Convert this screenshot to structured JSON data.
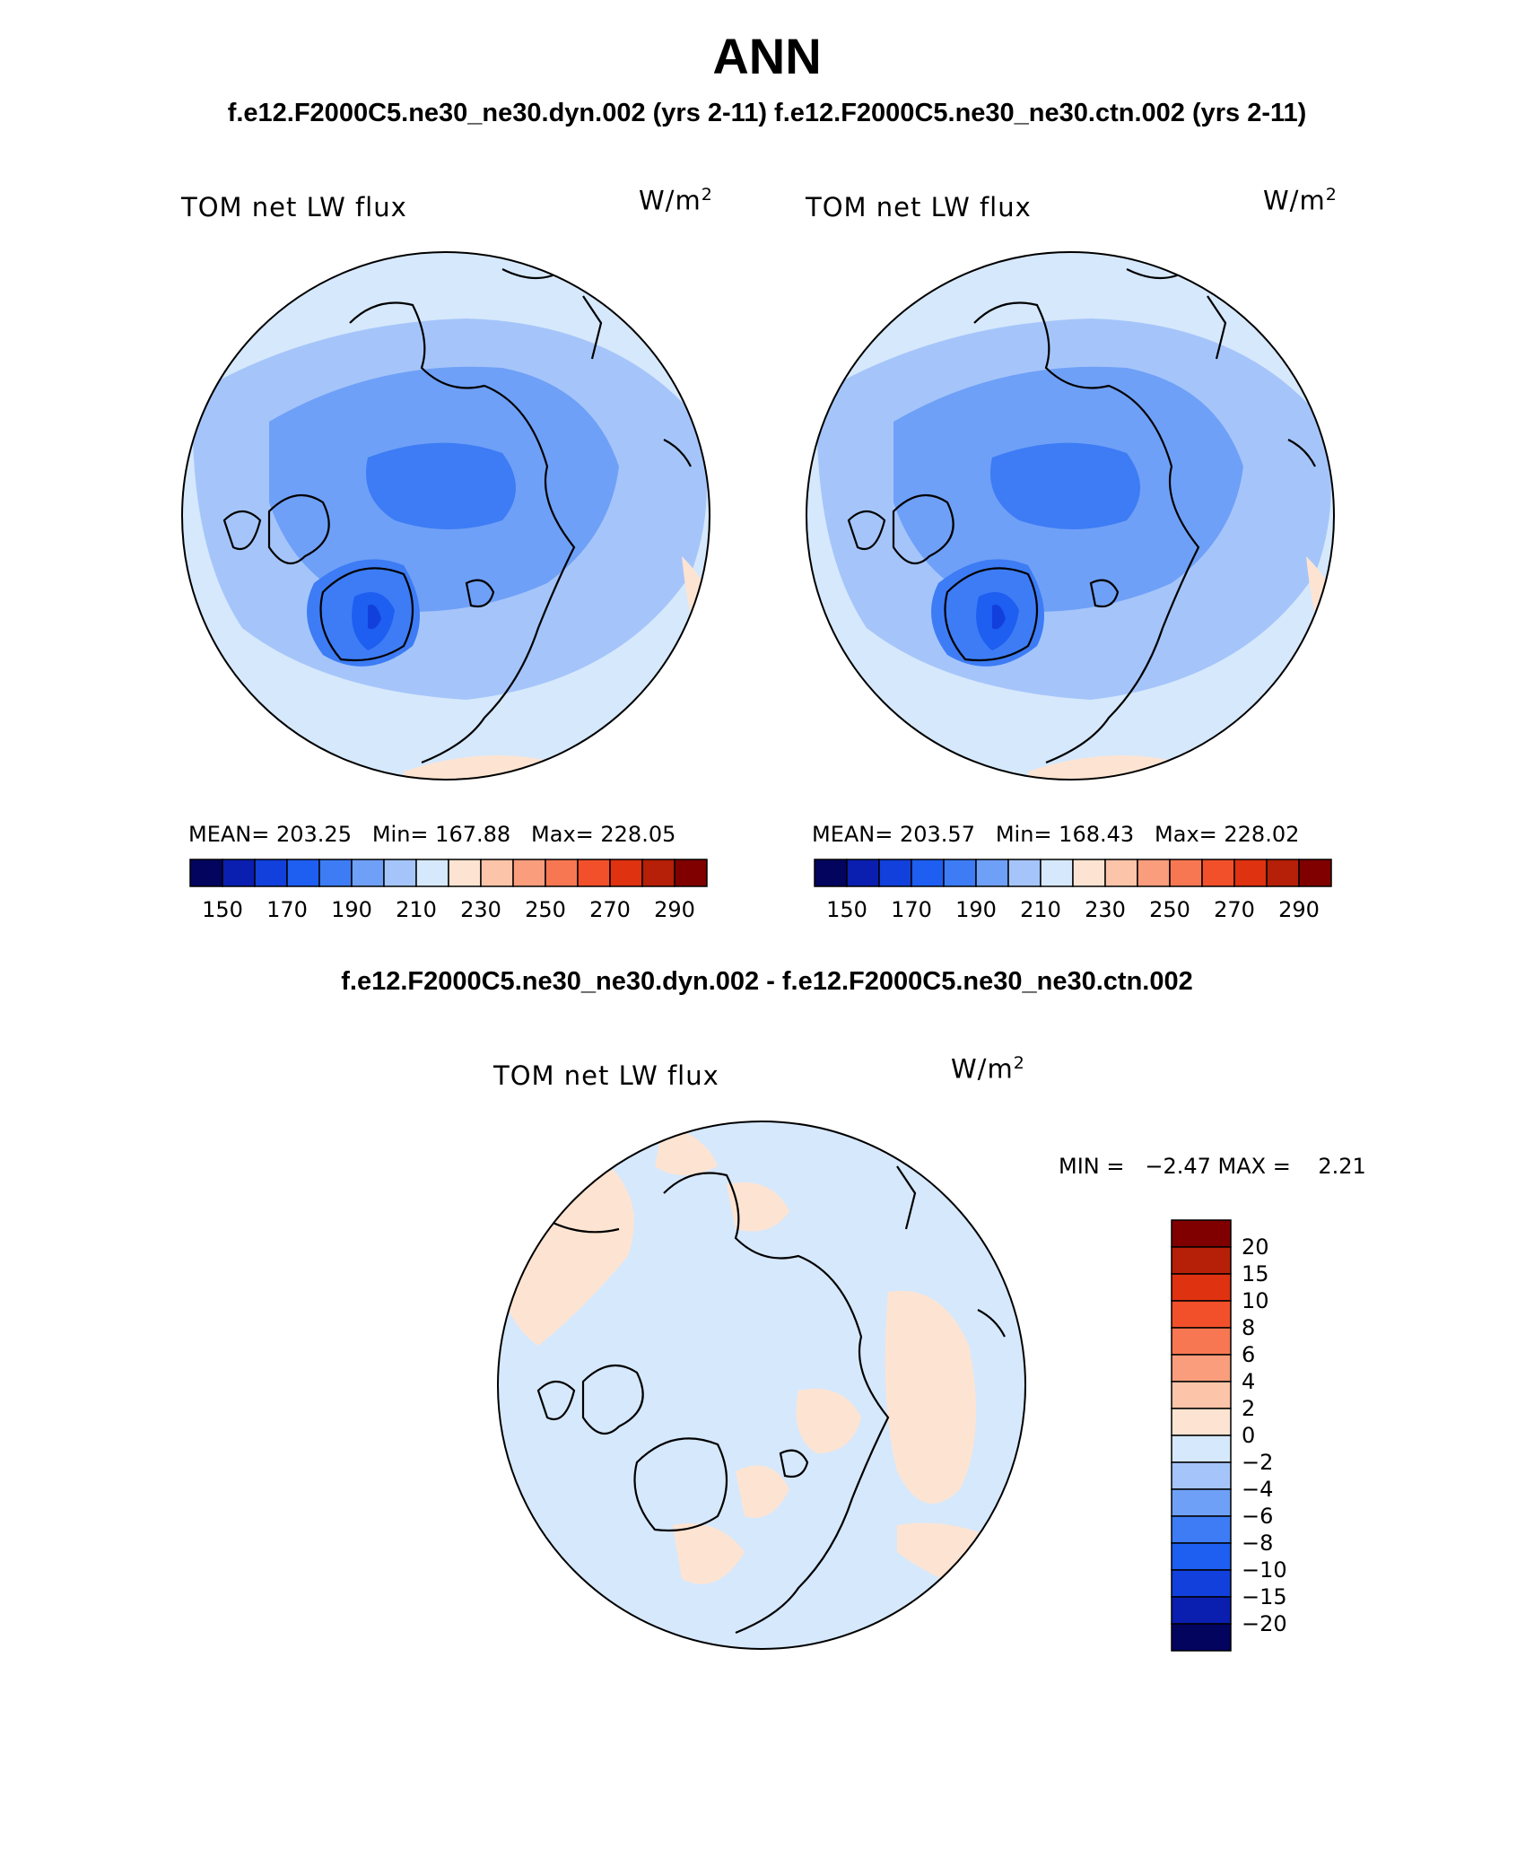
{
  "page": {
    "season": "ANN",
    "subtitle_top": "f.e12.F2000C5.ne30_ne30.dyn.002 (yrs 2-11)  f.e12.F2000C5.ne30_ne30.ctn.002 (yrs 2-11)",
    "subtitle_diff": "f.e12.F2000C5.ne30_ne30.dyn.002 - f.e12.F2000C5.ne30_ne30.ctn.002"
  },
  "panels": {
    "left": {
      "variable": "TOM net LW flux",
      "units_base": "W/m",
      "units_exp": "2",
      "stats": "MEAN= 203.25   Min= 167.88   Max= 228.05"
    },
    "right": {
      "variable": "TOM net LW flux",
      "units_base": "W/m",
      "units_exp": "2",
      "stats": "MEAN= 203.57   Min= 168.43   Max= 228.02"
    },
    "diff": {
      "variable": "TOM net LW flux",
      "units_base": "W/m",
      "units_exp": "2",
      "stats": "MIN =   −2.47 MAX =    2.21"
    }
  },
  "colorbar_abs": {
    "colors": [
      "#03045e",
      "#0a1fb0",
      "#1240dc",
      "#1e5ef0",
      "#3d7cf5",
      "#6fa0f7",
      "#a5c5fa",
      "#d6e8fc",
      "#fde4d2",
      "#fcc4a8",
      "#f99d7c",
      "#f77752",
      "#f2502b",
      "#df3210",
      "#b61f08",
      "#800000"
    ],
    "labels": [
      "150",
      "170",
      "190",
      "210",
      "230",
      "250",
      "270",
      "290"
    ]
  },
  "colorbar_diff": {
    "colors_top_to_bottom": [
      "#800000",
      "#b61f08",
      "#df3210",
      "#f2502b",
      "#f77752",
      "#f99d7c",
      "#fcc4a8",
      "#fde4d2",
      "#d6e8fc",
      "#a5c5fa",
      "#6fa0f7",
      "#3d7cf5",
      "#1e5ef0",
      "#1240dc",
      "#0a1fb0",
      "#03045e"
    ],
    "labels_top_to_bottom": [
      "20",
      "15",
      "10",
      "8",
      "6",
      "4",
      "2",
      "0",
      "−2",
      "−4",
      "−6",
      "−8",
      "−10",
      "−15",
      "−20"
    ]
  }
}
